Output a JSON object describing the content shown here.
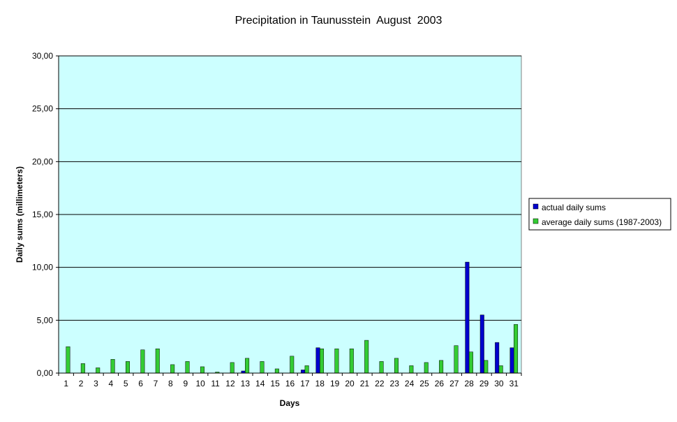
{
  "chart_data": {
    "type": "bar",
    "title": "Precipitation in Taunusstein  August  2003",
    "xlabel": "Days",
    "ylabel": "Daily sums  (millimeters)",
    "ylim": [
      0,
      30
    ],
    "yticks": [
      "0,00",
      "5,00",
      "10,00",
      "15,00",
      "20,00",
      "25,00",
      "30,00"
    ],
    "ytick_values": [
      0,
      5,
      10,
      15,
      20,
      25,
      30
    ],
    "grid": true,
    "legend_position": "right",
    "categories": [
      "1",
      "2",
      "3",
      "4",
      "5",
      "6",
      "7",
      "8",
      "9",
      "10",
      "11",
      "12",
      "13",
      "14",
      "15",
      "16",
      "17",
      "18",
      "19",
      "20",
      "21",
      "22",
      "23",
      "24",
      "25",
      "26",
      "27",
      "28",
      "29",
      "30",
      "31"
    ],
    "series": [
      {
        "name": "actual daily sums",
        "color": "#0000cc",
        "values": [
          0,
          0,
          0,
          0,
          0,
          0,
          0,
          0,
          0,
          0,
          0,
          0,
          0.2,
          0,
          0,
          0,
          0.3,
          2.4,
          0,
          0,
          0,
          0,
          0,
          0,
          0,
          0,
          0,
          10.5,
          5.5,
          2.9,
          2.4
        ]
      },
      {
        "name": "average daily sums (1987-2003)",
        "color": "#33cc33",
        "values": [
          2.5,
          0.9,
          0.5,
          1.3,
          1.1,
          2.2,
          2.3,
          0.8,
          1.1,
          0.6,
          0.1,
          1.0,
          1.4,
          1.1,
          0.4,
          1.6,
          0.7,
          2.3,
          2.3,
          2.3,
          3.1,
          1.1,
          1.4,
          0.7,
          1.0,
          1.2,
          2.6,
          2.0,
          1.2,
          0.7,
          4.6
        ]
      }
    ],
    "plot_background": "#ccffff"
  }
}
